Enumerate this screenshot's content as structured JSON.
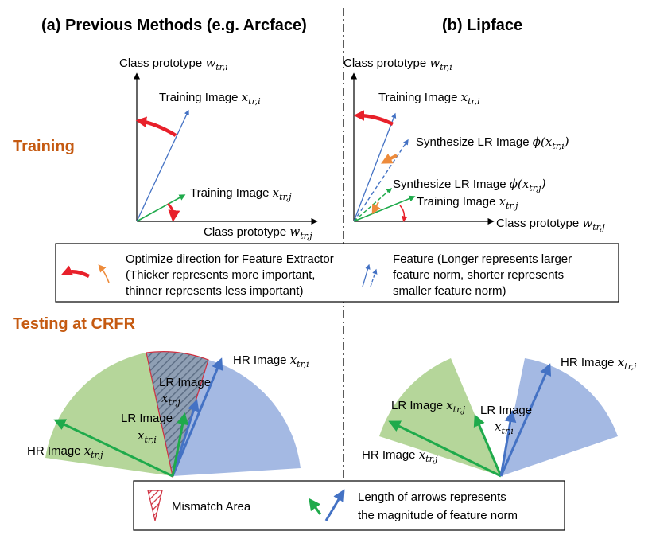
{
  "headings": {
    "left": "(a) Previous Methods (e.g. Arcface)",
    "right": "(b) Lipface",
    "training": "Training",
    "testing": "Testing at CRFR"
  },
  "training_left": {
    "y_axis_label": "Class prototype ",
    "y_axis_var": "w",
    "y_axis_sub": "tr,i",
    "x_axis_label": "Class prototype ",
    "x_axis_var": "w",
    "x_axis_sub": "tr,j",
    "img_i_label": "Training Image ",
    "img_i_var": "x",
    "img_i_sub": "tr,i",
    "img_j_label": "Training Image ",
    "img_j_var": "x",
    "img_j_sub": "tr,j"
  },
  "training_right": {
    "y_axis_label": "Class prototype ",
    "y_axis_var": "w",
    "y_axis_sub": "tr,i",
    "x_axis_label": "Class prototype ",
    "x_axis_var": "w",
    "x_axis_sub": "tr,j",
    "img_i_label": "Training Image ",
    "img_i_var": "x",
    "img_i_sub": "tr,i",
    "img_j_label": "Training Image ",
    "img_j_var": "x",
    "img_j_sub": "tr,j",
    "syn_i_label": "Synthesize LR Image ",
    "syn_i_fn": "ϕ(x",
    "syn_i_sub": "tr,i",
    "syn_i_close": ")",
    "syn_j_label": "Synthesize LR Image ",
    "syn_j_fn": "ϕ(x",
    "syn_j_sub": "tr,j",
    "syn_j_close": ")"
  },
  "legend_top": {
    "optimize_line1": "Optimize direction for Feature Extractor",
    "optimize_line2": "(Thicker represents more important,",
    "optimize_line3": "thinner represents less important)",
    "feature_line1": "Feature (Longer represents larger",
    "feature_line2": "feature norm, shorter represents",
    "feature_line3": "smaller feature norm)"
  },
  "testing_left": {
    "hr_i_label": "HR Image ",
    "hr_i_var": "x",
    "hr_i_sub": "tr,i",
    "hr_j_label": "HR Image ",
    "hr_j_var": "x",
    "hr_j_sub": "tr,j",
    "lr_j_label": "LR Image",
    "lr_j_var": "x",
    "lr_j_sub": "tr,j",
    "lr_i_label": "LR Image",
    "lr_i_var": "x",
    "lr_i_sub": "tr,i"
  },
  "testing_right": {
    "hr_i_label": "HR Image ",
    "hr_i_var": "x",
    "hr_i_sub": "tr,i",
    "hr_j_label": "HR Image ",
    "hr_j_var": "x",
    "hr_j_sub": "tr,j",
    "lr_j_label": "LR Image ",
    "lr_j_var": "x",
    "lr_j_sub": "tr,j",
    "lr_i_label": "LR Image",
    "lr_i_var": "x",
    "lr_i_sub": "tr,i"
  },
  "legend_bottom": {
    "mismatch": "Mismatch Area",
    "length_line1": "Length of arrows represents",
    "length_line2": "the magnitude of feature norm"
  },
  "colors": {
    "blue": "#4472c4",
    "green": "#1faa4b",
    "red": "#e8202a",
    "orange": "#ed8b3b",
    "heading_orange": "#c55a11",
    "green_fill": "#b5d69a",
    "blue_fill": "#a4b9e3",
    "mismatch_red": "#d03040"
  }
}
